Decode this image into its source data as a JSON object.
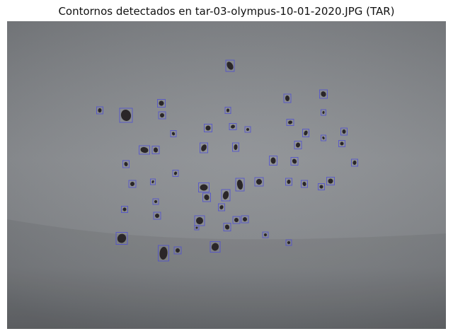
{
  "figure": {
    "title": "Contornos detectados en tar-03-olympus-10-01-2020.JPG (TAR)"
  },
  "photo": {
    "description_colors": {
      "background_light": "#8a8c90",
      "background_dark": "#6f7276",
      "particle": "#2a2628",
      "box_stroke": "#4b4bd6"
    }
  }
}
